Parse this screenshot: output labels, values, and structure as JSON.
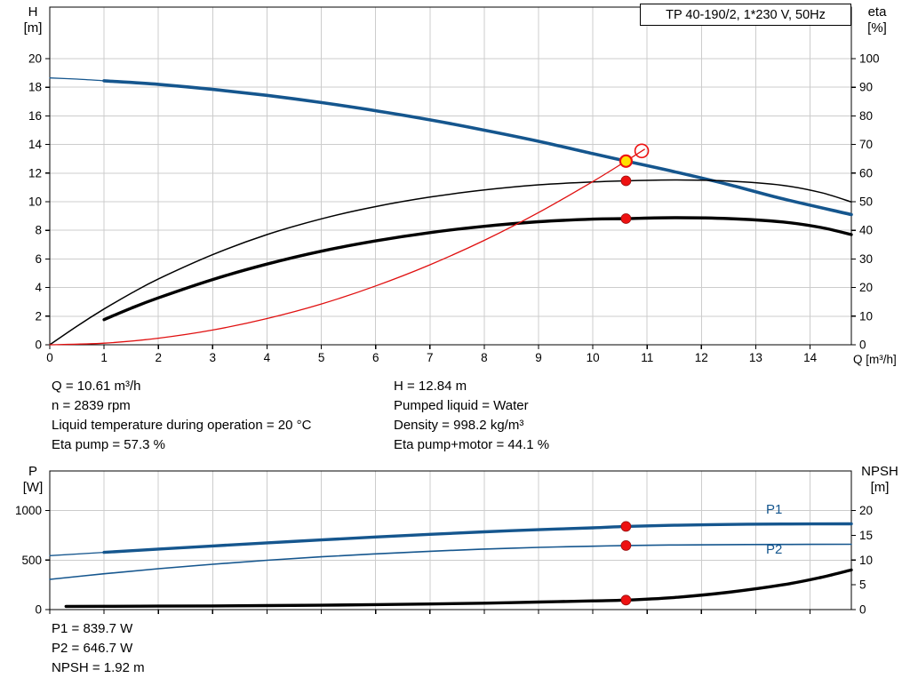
{
  "title_box": {
    "label": "TP 40-190/2, 1*230 V, 50Hz"
  },
  "axis_titles": {
    "top_left": [
      "H",
      "[m]"
    ],
    "top_right": [
      "eta",
      "[%]"
    ],
    "x": "Q [m³/h]",
    "bottom_left": [
      "P",
      "[W]"
    ],
    "bottom_right": [
      "NPSH",
      "[m]"
    ]
  },
  "curve_labels": {
    "p1": "P1",
    "p2": "P2"
  },
  "operating_point_info": {
    "left_column": [
      "Q = 10.61 m³/h",
      "n = 2839 rpm",
      "Liquid temperature during operation = 20 °C",
      "Eta pump = 57.3 %"
    ],
    "right_column": [
      "H = 12.84 m",
      "Pumped liquid = Water",
      "Density = 998.2 kg/m³",
      "Eta pump+motor = 44.1 %"
    ]
  },
  "power_info": [
    "P1 = 839.7 W",
    "P2 = 646.7 W",
    "NPSH = 1.92 m"
  ],
  "colors": {
    "blue": "#15568e",
    "black": "#000000",
    "red": "#e01010",
    "grid": "#cccccc",
    "border": "#000000"
  },
  "marker_styles": {
    "dot": {
      "r": 5.5,
      "fill": "#ee1111",
      "stroke": "#991111",
      "sw": 0.8
    },
    "duty": {
      "r": 6.5,
      "fill": "#ffe000",
      "stroke": "#ee1111",
      "sw": 2.2
    },
    "ring": {
      "r": 7.5,
      "fill": "none",
      "stroke": "#ee1111",
      "sw": 1.6
    }
  },
  "chart_data": [
    {
      "id": "head-efficiency",
      "type": "line",
      "title": "TP 40-190/2, 1*230 V, 50Hz",
      "plot": {
        "x0": 56,
        "y0": 8,
        "x1": 958,
        "y1": 388
      },
      "xlim": [
        0,
        14.76
      ],
      "x_grid": [
        0,
        1,
        2,
        3,
        4,
        5,
        6,
        7,
        8,
        9,
        10,
        11,
        12,
        13,
        14
      ],
      "x_tick_labels": [
        "0",
        "1",
        "2",
        "3",
        "4",
        "5",
        "6",
        "7",
        "8",
        "9",
        "10",
        "11",
        "12",
        "13",
        "14"
      ],
      "xlabel": "Q [m³/h]",
      "left_axis": {
        "label": "H [m]",
        "lim": [
          0,
          23.6
        ],
        "ticks": [
          0,
          2,
          4,
          6,
          8,
          10,
          12,
          14,
          16,
          18,
          20
        ]
      },
      "right_axis": {
        "label": "eta [%]",
        "lim": [
          0,
          118
        ],
        "ticks": [
          0,
          10,
          20,
          30,
          40,
          50,
          60,
          70,
          80,
          90,
          100
        ]
      },
      "series": [
        {
          "name": "head-curve-lead",
          "axis": "left",
          "color": "blue",
          "width": 1.3,
          "points": [
            [
              0,
              18.65
            ],
            [
              0.5,
              18.57
            ],
            [
              1,
              18.45
            ]
          ]
        },
        {
          "name": "head-curve",
          "axis": "left",
          "color": "blue",
          "width": 3.6,
          "points": [
            [
              1,
              18.45
            ],
            [
              2,
              18.2
            ],
            [
              3,
              17.85
            ],
            [
              4,
              17.43
            ],
            [
              5,
              16.93
            ],
            [
              6,
              16.36
            ],
            [
              7,
              15.72
            ],
            [
              8,
              15.0
            ],
            [
              9,
              14.22
            ],
            [
              10,
              13.36
            ],
            [
              10.61,
              12.84
            ],
            [
              11.5,
              12.1
            ],
            [
              12.5,
              11.2
            ],
            [
              13.5,
              10.2
            ],
            [
              14.76,
              9.1
            ]
          ]
        },
        {
          "name": "eta-pump-curve",
          "axis": "right",
          "color": "black",
          "width": 1.5,
          "points": [
            [
              0,
              0
            ],
            [
              0.5,
              6.5
            ],
            [
              1,
              12.5
            ],
            [
              1.5,
              18
            ],
            [
              2,
              23
            ],
            [
              3,
              31.5
            ],
            [
              4,
              38.5
            ],
            [
              5,
              44
            ],
            [
              6,
              48.3
            ],
            [
              7,
              51.6
            ],
            [
              8,
              54.1
            ],
            [
              9,
              55.9
            ],
            [
              10,
              56.9
            ],
            [
              10.61,
              57.3
            ],
            [
              11.5,
              57.6
            ],
            [
              12.5,
              57.2
            ],
            [
              13.5,
              55.7
            ],
            [
              14.2,
              53.2
            ],
            [
              14.76,
              49.9
            ]
          ]
        },
        {
          "name": "eta-pump-motor-curve",
          "axis": "right",
          "color": "black",
          "width": 3.4,
          "points": [
            [
              1,
              8.8
            ],
            [
              1.5,
              12.8
            ],
            [
              2,
              16.4
            ],
            [
              3,
              22.8
            ],
            [
              4,
              28.2
            ],
            [
              5,
              32.7
            ],
            [
              6,
              36.3
            ],
            [
              7,
              39.2
            ],
            [
              8,
              41.4
            ],
            [
              9,
              43.0
            ],
            [
              10,
              43.9
            ],
            [
              10.61,
              44.1
            ],
            [
              11.5,
              44.4
            ],
            [
              12.5,
              44.1
            ],
            [
              13.5,
              42.9
            ],
            [
              14.2,
              41.0
            ],
            [
              14.76,
              38.5
            ]
          ]
        },
        {
          "name": "system-curve",
          "axis": "left",
          "color": "red",
          "width": 1.3,
          "points": [
            [
              0,
              0
            ],
            [
              1,
              0.11
            ],
            [
              2,
              0.46
            ],
            [
              3,
              1.03
            ],
            [
              4,
              1.83
            ],
            [
              5,
              2.85
            ],
            [
              6,
              4.11
            ],
            [
              7,
              5.59
            ],
            [
              8,
              7.3
            ],
            [
              9,
              9.24
            ],
            [
              10,
              11.41
            ],
            [
              10.61,
              12.84
            ],
            [
              10.95,
              13.66
            ]
          ]
        }
      ],
      "markers": [
        {
          "name": "eta-pump-point",
          "axis": "right",
          "x": 10.61,
          "v": 57.3,
          "kind": "dot"
        },
        {
          "name": "eta-pump-motor-point",
          "axis": "right",
          "x": 10.61,
          "v": 44.1,
          "kind": "dot"
        },
        {
          "name": "duty-point",
          "axis": "left",
          "x": 10.61,
          "v": 12.84,
          "kind": "duty"
        },
        {
          "name": "requested-duty-ring",
          "axis": "left",
          "x": 10.9,
          "v": 13.55,
          "kind": "ring"
        }
      ]
    },
    {
      "id": "power-npsh",
      "type": "line",
      "plot": {
        "x0": 56,
        "y0": 530,
        "x1": 958,
        "y1": 686
      },
      "xlim": [
        0,
        14.76
      ],
      "x_grid": [
        0,
        1,
        2,
        3,
        4,
        5,
        6,
        7,
        8,
        9,
        10,
        11,
        12,
        13,
        14
      ],
      "x_tick_labels": [],
      "left_axis": {
        "label": "P [W]",
        "lim": [
          0,
          1400
        ],
        "ticks": [
          0,
          500,
          1000
        ]
      },
      "right_axis": {
        "label": "NPSH [m]",
        "lim": [
          0,
          28
        ],
        "ticks": [
          0,
          5,
          10,
          15,
          20
        ]
      },
      "series": [
        {
          "name": "p1-curve-lead",
          "axis": "left",
          "color": "blue",
          "width": 1.3,
          "points": [
            [
              0,
              545
            ],
            [
              1,
              578
            ]
          ]
        },
        {
          "name": "p1-curve",
          "axis": "left",
          "color": "blue",
          "width": 3.4,
          "points": [
            [
              1,
              578
            ],
            [
              2,
              611
            ],
            [
              3,
              643
            ],
            [
              4,
              674
            ],
            [
              5,
              704
            ],
            [
              6,
              733
            ],
            [
              7,
              760
            ],
            [
              8,
              785
            ],
            [
              9,
              807
            ],
            [
              10,
              826
            ],
            [
              10.61,
              839.7
            ],
            [
              11.5,
              852
            ],
            [
              12.5,
              860
            ],
            [
              13.5,
              864
            ],
            [
              14.76,
              866
            ]
          ]
        },
        {
          "name": "p2-curve",
          "axis": "left",
          "color": "blue",
          "width": 1.6,
          "points": [
            [
              0,
              305
            ],
            [
              1,
              362
            ],
            [
              2,
              413
            ],
            [
              3,
              458
            ],
            [
              4,
              498
            ],
            [
              5,
              533
            ],
            [
              6,
              563
            ],
            [
              7,
              589
            ],
            [
              8,
              611
            ],
            [
              9,
              628
            ],
            [
              10,
              640
            ],
            [
              10.61,
              646.7
            ],
            [
              11.5,
              652
            ],
            [
              12.5,
              656
            ],
            [
              13.5,
              658
            ],
            [
              14.76,
              660
            ]
          ]
        },
        {
          "name": "npsh-curve",
          "axis": "right",
          "color": "black",
          "width": 3.4,
          "points": [
            [
              0.3,
              0.65
            ],
            [
              1,
              0.67
            ],
            [
              2,
              0.7
            ],
            [
              3,
              0.74
            ],
            [
              4,
              0.8
            ],
            [
              5,
              0.88
            ],
            [
              6,
              1.0
            ],
            [
              7,
              1.13
            ],
            [
              8,
              1.3
            ],
            [
              9,
              1.52
            ],
            [
              10,
              1.76
            ],
            [
              10.61,
              1.92
            ],
            [
              11.5,
              2.45
            ],
            [
              12.5,
              3.5
            ],
            [
              13.5,
              5.0
            ],
            [
              14.2,
              6.5
            ],
            [
              14.76,
              8.0
            ]
          ]
        }
      ],
      "markers": [
        {
          "name": "p1-point",
          "axis": "left",
          "x": 10.61,
          "v": 839.7,
          "kind": "dot"
        },
        {
          "name": "p2-point",
          "axis": "left",
          "x": 10.61,
          "v": 646.7,
          "kind": "dot"
        },
        {
          "name": "npsh-point",
          "axis": "right",
          "x": 10.61,
          "v": 1.92,
          "kind": "dot"
        }
      ]
    }
  ]
}
